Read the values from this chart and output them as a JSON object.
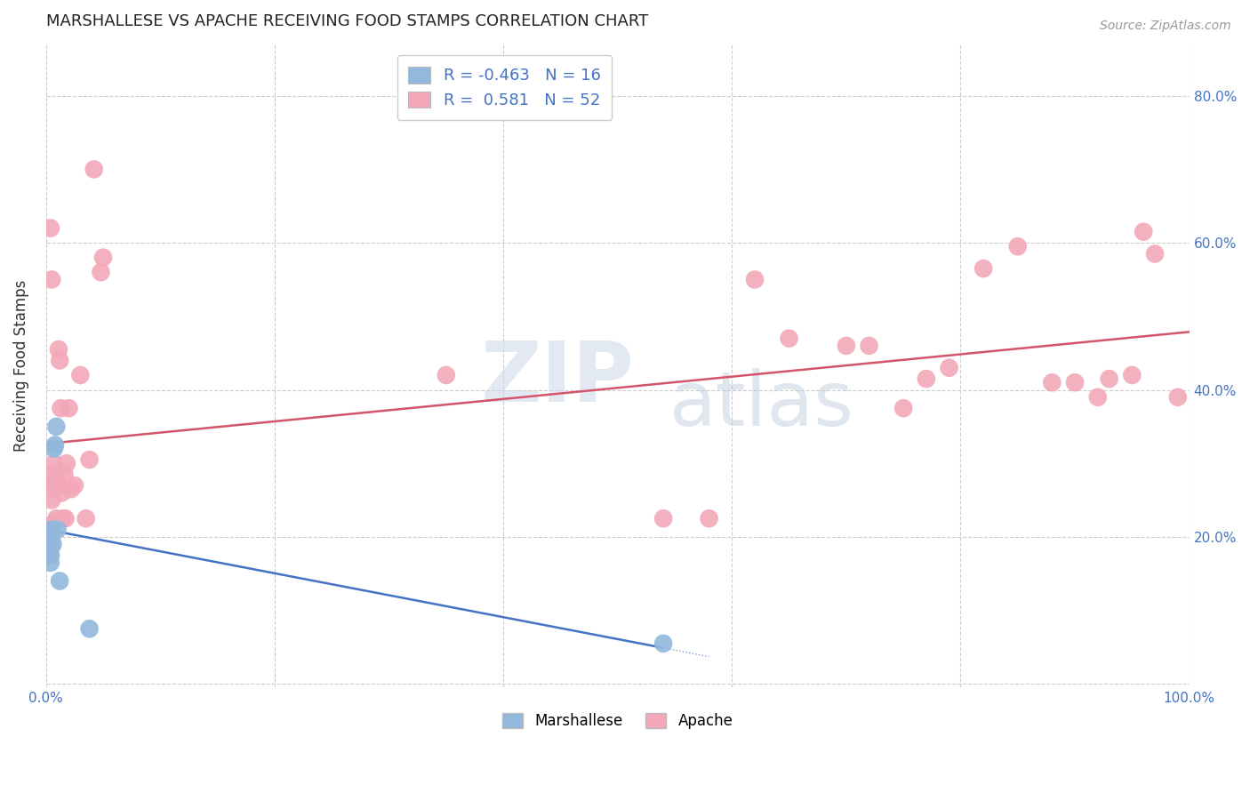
{
  "title": "MARSHALLESE VS APACHE RECEIVING FOOD STAMPS CORRELATION CHART",
  "source": "Source: ZipAtlas.com",
  "ylabel": "Receiving Food Stamps",
  "legend_blue_r": "-0.463",
  "legend_blue_n": "16",
  "legend_pink_r": "0.581",
  "legend_pink_n": "52",
  "legend_label_blue": "Marshallese",
  "legend_label_pink": "Apache",
  "xlim": [
    0.0,
    1.0
  ],
  "ylim": [
    -0.005,
    0.87
  ],
  "xtick_vals": [
    0.0,
    1.0
  ],
  "xticklabels": [
    "0.0%",
    "100.0%"
  ],
  "ytick_vals": [
    0.0,
    0.2,
    0.4,
    0.6,
    0.8
  ],
  "yticklabels": [
    "",
    "20.0%",
    "40.0%",
    "60.0%",
    "80.0%"
  ],
  "background_color": "#ffffff",
  "grid_color": "#cccccc",
  "blue_scatter_color": "#92b8dc",
  "pink_scatter_color": "#f2a8b8",
  "blue_line_color": "#4472c4",
  "pink_line_color": "#d4546a",
  "title_color": "#222222",
  "tick_color": "#4472c4",
  "watermark_zip": "ZIP",
  "watermark_atlas": "atlas",
  "marshallese_x": [
    0.003,
    0.003,
    0.004,
    0.004,
    0.004,
    0.004,
    0.005,
    0.005,
    0.006,
    0.007,
    0.008,
    0.009,
    0.01,
    0.012,
    0.038,
    0.54
  ],
  "marshallese_y": [
    0.175,
    0.19,
    0.175,
    0.205,
    0.165,
    0.185,
    0.195,
    0.21,
    0.19,
    0.32,
    0.325,
    0.35,
    0.21,
    0.14,
    0.075,
    0.055
  ],
  "apache_x": [
    0.003,
    0.003,
    0.004,
    0.004,
    0.005,
    0.005,
    0.006,
    0.006,
    0.007,
    0.007,
    0.008,
    0.008,
    0.009,
    0.01,
    0.01,
    0.011,
    0.012,
    0.013,
    0.014,
    0.015,
    0.016,
    0.017,
    0.018,
    0.02,
    0.022,
    0.025,
    0.03,
    0.035,
    0.038,
    0.042,
    0.048,
    0.05,
    0.35,
    0.54,
    0.58,
    0.62,
    0.65,
    0.7,
    0.72,
    0.75,
    0.77,
    0.79,
    0.82,
    0.85,
    0.88,
    0.9,
    0.92,
    0.93,
    0.95,
    0.96,
    0.97,
    0.99
  ],
  "apache_y": [
    0.175,
    0.19,
    0.62,
    0.175,
    0.55,
    0.25,
    0.275,
    0.285,
    0.3,
    0.265,
    0.28,
    0.22,
    0.225,
    0.275,
    0.27,
    0.455,
    0.44,
    0.375,
    0.26,
    0.225,
    0.285,
    0.225,
    0.3,
    0.375,
    0.265,
    0.27,
    0.42,
    0.225,
    0.305,
    0.7,
    0.56,
    0.58,
    0.42,
    0.225,
    0.225,
    0.55,
    0.47,
    0.46,
    0.46,
    0.375,
    0.415,
    0.43,
    0.565,
    0.595,
    0.41,
    0.41,
    0.39,
    0.415,
    0.42,
    0.615,
    0.585,
    0.39
  ]
}
